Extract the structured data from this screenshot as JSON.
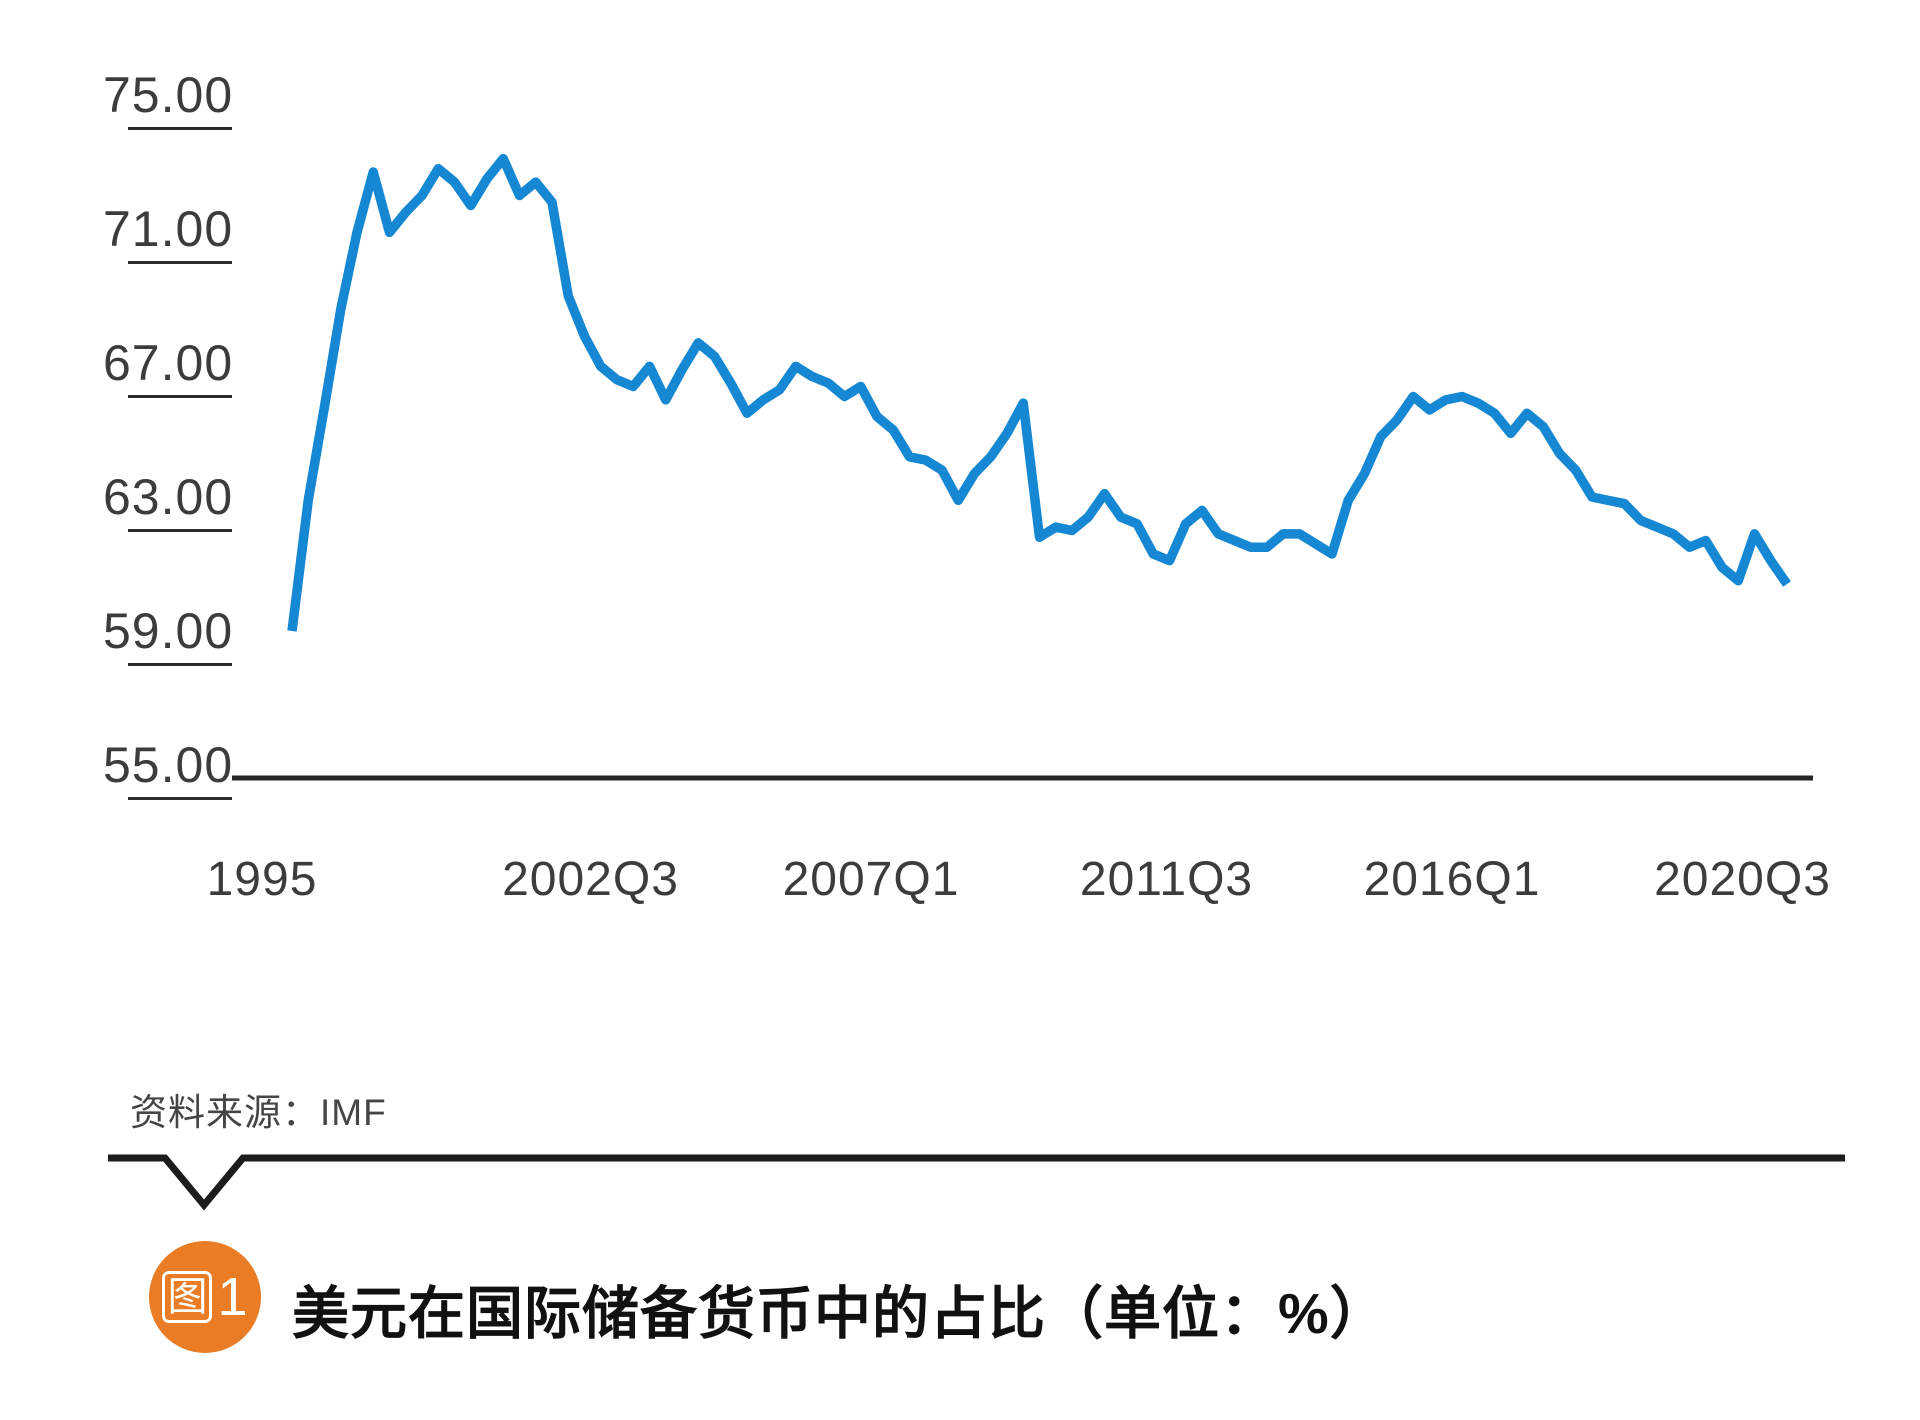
{
  "chart": {
    "y_axis": {
      "tick_labels": [
        "75.00",
        "71.00",
        "67.00",
        "63.00",
        "59.00",
        "55.00"
      ],
      "tick_values": [
        75,
        71,
        67,
        63,
        59,
        55
      ]
    },
    "x_axis": {
      "tick_labels": [
        "1995",
        "2002Q3",
        "2007Q1",
        "2011Q3",
        "2016Q1",
        "2020Q3"
      ],
      "tick_indices": [
        0,
        18,
        36,
        54,
        72,
        90
      ]
    },
    "line_color": "#1687d3",
    "axis_color": "#262626"
  },
  "chart_data": {
    "type": "line",
    "title": "美元在国际储备货币中的占比（单位：%）",
    "unit": "%",
    "ylabel": "",
    "xlabel": "",
    "ylim": [
      55,
      75
    ],
    "ytick_step": 4,
    "grid": false,
    "legend_position": "none",
    "x": [
      "1995",
      "1996",
      "1997",
      "1998",
      "1999Q1",
      "1999Q2",
      "1999Q3",
      "1999Q4",
      "2000Q1",
      "2000Q2",
      "2000Q3",
      "2000Q4",
      "2001Q1",
      "2001Q2",
      "2001Q3",
      "2001Q4",
      "2002Q1",
      "2002Q2",
      "2002Q3",
      "2002Q4",
      "2003Q1",
      "2003Q2",
      "2003Q3",
      "2003Q4",
      "2004Q1",
      "2004Q2",
      "2004Q3",
      "2004Q4",
      "2005Q1",
      "2005Q2",
      "2005Q3",
      "2005Q4",
      "2006Q1",
      "2006Q2",
      "2006Q3",
      "2006Q4",
      "2007Q1",
      "2007Q2",
      "2007Q3",
      "2007Q4",
      "2008Q1",
      "2008Q2",
      "2008Q3",
      "2008Q4",
      "2009Q1",
      "2009Q2",
      "2009Q3",
      "2009Q4",
      "2010Q1",
      "2010Q2",
      "2010Q3",
      "2010Q4",
      "2011Q1",
      "2011Q2",
      "2011Q3",
      "2011Q4",
      "2012Q1",
      "2012Q2",
      "2012Q3",
      "2012Q4",
      "2013Q1",
      "2013Q2",
      "2013Q3",
      "2013Q4",
      "2014Q1",
      "2014Q2",
      "2014Q3",
      "2014Q4",
      "2015Q1",
      "2015Q2",
      "2015Q3",
      "2015Q4",
      "2016Q1",
      "2016Q2",
      "2016Q3",
      "2016Q4",
      "2017Q1",
      "2017Q2",
      "2017Q3",
      "2017Q4",
      "2018Q1",
      "2018Q2",
      "2018Q3",
      "2018Q4",
      "2019Q1",
      "2019Q2",
      "2019Q3",
      "2019Q4",
      "2020Q1",
      "2020Q2",
      "2020Q3",
      "2020Q4",
      "2021Q1"
    ],
    "series": [
      {
        "name": "美元在国际储备货币中的占比",
        "values": [
          59.0,
          62.9,
          65.7,
          68.6,
          70.9,
          72.7,
          70.9,
          71.5,
          72.0,
          72.8,
          72.4,
          71.7,
          72.5,
          73.1,
          72.0,
          72.4,
          71.8,
          69.0,
          67.8,
          66.9,
          66.5,
          66.3,
          66.9,
          65.9,
          66.8,
          67.6,
          67.2,
          66.4,
          65.5,
          65.9,
          66.2,
          66.9,
          66.6,
          66.4,
          66.0,
          66.3,
          65.4,
          65.0,
          64.2,
          64.1,
          63.8,
          62.9,
          63.7,
          64.2,
          64.9,
          65.8,
          61.8,
          62.1,
          62.0,
          62.4,
          63.1,
          62.4,
          62.2,
          61.3,
          61.1,
          62.2,
          62.6,
          61.9,
          61.7,
          61.5,
          61.5,
          61.9,
          61.9,
          61.6,
          61.3,
          62.9,
          63.7,
          64.8,
          65.3,
          66.0,
          65.6,
          65.9,
          66.0,
          65.8,
          65.5,
          64.9,
          65.5,
          65.1,
          64.3,
          63.8,
          63.0,
          62.9,
          62.8,
          62.3,
          62.1,
          61.9,
          61.5,
          61.7,
          60.9,
          60.5,
          61.9,
          61.1,
          60.4
        ]
      }
    ]
  },
  "source": {
    "label": "资料来源：",
    "value": "IMF"
  },
  "caption": {
    "badge_glyph": "图",
    "badge_number": "1",
    "badge_color": "#ea7c26",
    "title": "美元在国际储备货币中的占比（单位：%）"
  }
}
